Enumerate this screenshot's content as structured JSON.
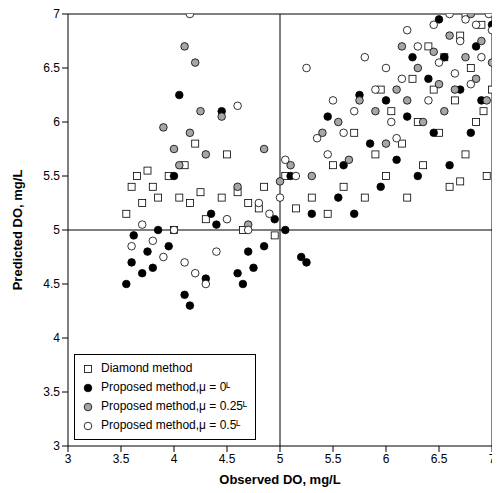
{
  "chart_data": {
    "type": "scatter",
    "x_label": "Observed DO, mg/L",
    "y_label": "Predicted DO, mg/L",
    "xlim": [
      3,
      7
    ],
    "ylim": [
      3,
      7
    ],
    "xticks": [
      3,
      3.5,
      4,
      4.5,
      5,
      5.5,
      6,
      6.5,
      7
    ],
    "yticks": [
      3,
      3.5,
      4,
      4.5,
      5,
      5.5,
      6,
      6.5,
      7
    ],
    "threshold": {
      "x": 5,
      "y": 5
    },
    "legend": "lower left",
    "series": [
      {
        "name": "Diamond method",
        "marker": "square",
        "color": "#ffffff",
        "values": [
          [
            3.55,
            5.15
          ],
          [
            3.6,
            5.4
          ],
          [
            3.65,
            5.5
          ],
          [
            3.7,
            5.25
          ],
          [
            3.75,
            5.55
          ],
          [
            3.8,
            5.4
          ],
          [
            3.85,
            5.3
          ],
          [
            3.95,
            5.5
          ],
          [
            4.0,
            5.0
          ],
          [
            4.05,
            5.3
          ],
          [
            4.1,
            5.6
          ],
          [
            4.15,
            5.25
          ],
          [
            4.2,
            5.8
          ],
          [
            4.25,
            5.35
          ],
          [
            4.3,
            5.1
          ],
          [
            4.45,
            5.3
          ],
          [
            4.5,
            5.7
          ],
          [
            4.6,
            5.35
          ],
          [
            4.65,
            5.0
          ],
          [
            4.7,
            5.25
          ],
          [
            4.8,
            5.2
          ],
          [
            4.85,
            5.4
          ],
          [
            4.95,
            4.95
          ],
          [
            5.05,
            5.5
          ],
          [
            5.15,
            5.2
          ],
          [
            5.3,
            5.3
          ],
          [
            5.45,
            5.15
          ],
          [
            5.5,
            5.6
          ],
          [
            5.6,
            5.4
          ],
          [
            5.7,
            5.9
          ],
          [
            5.8,
            5.3
          ],
          [
            5.9,
            5.7
          ],
          [
            6.0,
            5.5
          ],
          [
            6.05,
            6.1
          ],
          [
            6.15,
            5.8
          ],
          [
            6.2,
            5.3
          ],
          [
            6.3,
            6.0
          ],
          [
            6.35,
            5.6
          ],
          [
            6.45,
            6.3
          ],
          [
            6.5,
            5.9
          ],
          [
            6.55,
            6.6
          ],
          [
            6.6,
            5.4
          ],
          [
            6.65,
            6.2
          ],
          [
            6.7,
            6.8
          ],
          [
            6.75,
            5.7
          ],
          [
            6.8,
            6.5
          ],
          [
            6.85,
            6.0
          ],
          [
            6.9,
            6.9
          ],
          [
            6.95,
            5.5
          ],
          [
            7.0,
            6.3
          ],
          [
            6.4,
            6.7
          ],
          [
            6.25,
            6.4
          ],
          [
            5.95,
            6.3
          ],
          [
            6.75,
            7.0
          ],
          [
            6.92,
            6.1
          ],
          [
            6.7,
            5.45
          ]
        ]
      },
      {
        "name": "Proposed method,μ = 0ᴸ",
        "marker": "circle",
        "color": "#000000",
        "values": [
          [
            3.55,
            4.5
          ],
          [
            3.6,
            4.7
          ],
          [
            3.62,
            4.95
          ],
          [
            3.7,
            4.6
          ],
          [
            3.75,
            4.8
          ],
          [
            3.8,
            4.65
          ],
          [
            3.85,
            5.0
          ],
          [
            3.95,
            4.85
          ],
          [
            4.0,
            5.5
          ],
          [
            4.05,
            6.25
          ],
          [
            4.1,
            4.4
          ],
          [
            4.15,
            4.3
          ],
          [
            4.3,
            4.55
          ],
          [
            4.35,
            5.15
          ],
          [
            4.4,
            5.05
          ],
          [
            4.45,
            6.1
          ],
          [
            4.6,
            4.6
          ],
          [
            4.65,
            4.5
          ],
          [
            4.7,
            4.8
          ],
          [
            4.75,
            4.65
          ],
          [
            4.85,
            4.85
          ],
          [
            4.95,
            5.1
          ],
          [
            5.05,
            5.0
          ],
          [
            5.1,
            5.5
          ],
          [
            5.2,
            4.75
          ],
          [
            5.25,
            4.7
          ],
          [
            5.3,
            5.15
          ],
          [
            5.45,
            6.05
          ],
          [
            5.55,
            5.3
          ],
          [
            5.6,
            5.6
          ],
          [
            5.7,
            5.15
          ],
          [
            5.85,
            5.8
          ],
          [
            5.95,
            5.4
          ],
          [
            6.0,
            6.2
          ],
          [
            6.1,
            5.65
          ],
          [
            6.2,
            6.05
          ],
          [
            6.3,
            5.5
          ],
          [
            6.4,
            6.4
          ],
          [
            6.45,
            5.9
          ],
          [
            6.55,
            6.6
          ],
          [
            6.6,
            5.6
          ],
          [
            6.7,
            6.3
          ],
          [
            6.8,
            5.9
          ],
          [
            6.85,
            6.7
          ],
          [
            6.9,
            6.2
          ],
          [
            7.0,
            6.9
          ],
          [
            6.5,
            6.95
          ],
          [
            6.25,
            6.6
          ],
          [
            5.75,
            6.25
          ]
        ]
      },
      {
        "name": "Proposed method,μ = 0.25ᴸ",
        "marker": "circle",
        "color": "#a6a6a6",
        "values": [
          [
            3.9,
            5.95
          ],
          [
            4.0,
            5.75
          ],
          [
            4.05,
            5.6
          ],
          [
            4.1,
            6.7
          ],
          [
            4.15,
            5.9
          ],
          [
            4.2,
            6.55
          ],
          [
            4.25,
            6.1
          ],
          [
            4.3,
            5.7
          ],
          [
            4.45,
            6.05
          ],
          [
            4.6,
            5.4
          ],
          [
            4.7,
            5.05
          ],
          [
            4.85,
            5.75
          ],
          [
            5.0,
            5.45
          ],
          [
            5.1,
            5.6
          ],
          [
            5.3,
            5.5
          ],
          [
            5.4,
            5.9
          ],
          [
            5.55,
            6.0
          ],
          [
            5.65,
            5.65
          ],
          [
            5.75,
            6.2
          ],
          [
            5.9,
            6.1
          ],
          [
            6.0,
            5.8
          ],
          [
            6.1,
            6.3
          ],
          [
            6.2,
            6.2
          ],
          [
            6.3,
            6.5
          ],
          [
            6.35,
            6.0
          ],
          [
            6.45,
            6.65
          ],
          [
            6.5,
            6.35
          ],
          [
            6.6,
            6.8
          ],
          [
            6.65,
            6.3
          ],
          [
            6.75,
            6.6
          ],
          [
            6.8,
            7.0
          ],
          [
            6.85,
            6.4
          ],
          [
            6.9,
            6.75
          ],
          [
            6.95,
            6.2
          ],
          [
            7.0,
            6.55
          ],
          [
            6.55,
            6.1
          ],
          [
            6.15,
            6.7
          ]
        ]
      },
      {
        "name": "Proposed method,μ = 0.5ᴸ",
        "marker": "circle",
        "color": "#ffffff",
        "values": [
          [
            3.6,
            4.85
          ],
          [
            3.7,
            5.05
          ],
          [
            3.8,
            4.9
          ],
          [
            3.9,
            4.75
          ],
          [
            4.0,
            5.0
          ],
          [
            4.1,
            4.7
          ],
          [
            4.15,
            7.0
          ],
          [
            4.2,
            4.6
          ],
          [
            4.3,
            4.5
          ],
          [
            4.4,
            4.8
          ],
          [
            4.5,
            5.1
          ],
          [
            4.6,
            6.15
          ],
          [
            4.7,
            5.0
          ],
          [
            4.8,
            5.25
          ],
          [
            4.9,
            5.15
          ],
          [
            5.0,
            5.3
          ],
          [
            5.05,
            5.65
          ],
          [
            5.15,
            5.5
          ],
          [
            5.25,
            6.5
          ],
          [
            5.35,
            5.85
          ],
          [
            5.45,
            5.7
          ],
          [
            5.5,
            6.2
          ],
          [
            5.6,
            5.9
          ],
          [
            5.7,
            6.1
          ],
          [
            5.8,
            6.6
          ],
          [
            5.9,
            6.3
          ],
          [
            6.0,
            6.5
          ],
          [
            6.05,
            6.0
          ],
          [
            6.15,
            6.4
          ],
          [
            6.2,
            6.85
          ],
          [
            6.3,
            6.7
          ],
          [
            6.4,
            6.2
          ],
          [
            6.45,
            6.9
          ],
          [
            6.5,
            6.55
          ],
          [
            6.6,
            7.0
          ],
          [
            6.65,
            6.45
          ],
          [
            6.7,
            6.75
          ],
          [
            6.8,
            6.35
          ],
          [
            6.85,
            6.9
          ],
          [
            6.9,
            6.6
          ],
          [
            6.97,
            7.0
          ],
          [
            7.0,
            6.85
          ],
          [
            6.75,
            6.95
          ],
          [
            6.1,
            5.85
          ]
        ]
      }
    ]
  }
}
